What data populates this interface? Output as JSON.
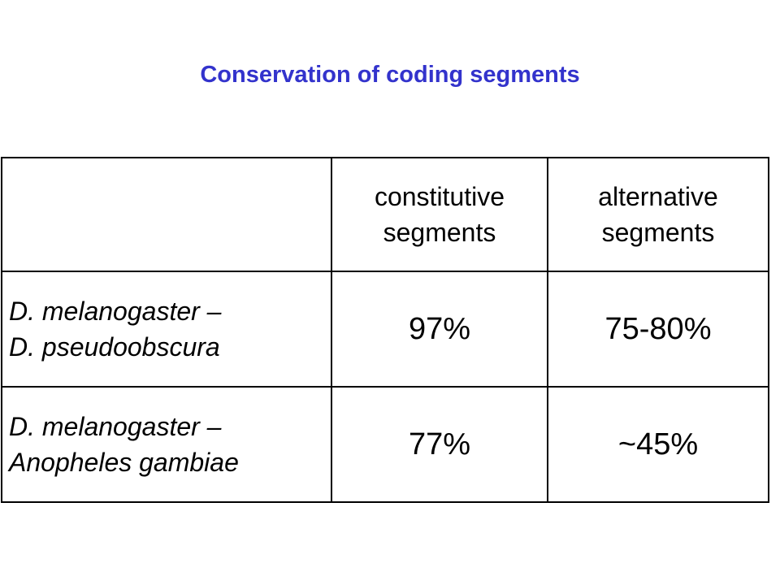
{
  "slide": {
    "title": "Conservation of coding segments"
  },
  "table": {
    "columns": [
      {
        "line1": "",
        "line2": ""
      },
      {
        "line1": "constitutive",
        "line2": "segments"
      },
      {
        "line1": "alternative",
        "line2": "segments"
      }
    ],
    "rows": [
      {
        "species_line1": "D. melanogaster –",
        "species_line2": "D. pseudoobscura",
        "constitutive": "97%",
        "alternative": "75-80%"
      },
      {
        "species_line1": "D. melanogaster –",
        "species_line2": "Anopheles gambiae",
        "constitutive": "77%",
        "alternative": "~45%"
      }
    ]
  },
  "colors": {
    "title": "#3333cc",
    "text": "#000000",
    "border": "#000000",
    "background": "#ffffff"
  }
}
